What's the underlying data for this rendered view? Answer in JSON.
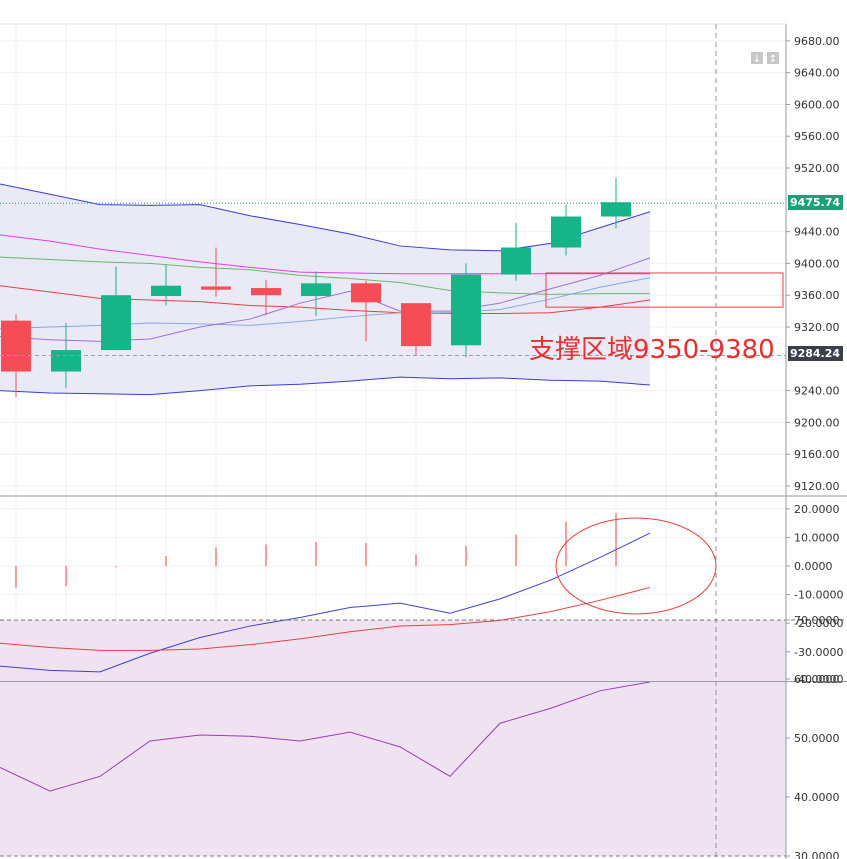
{
  "chart_data": [
    {
      "type": "candlestick",
      "panel": "price",
      "ylim": [
        9100,
        9700
      ],
      "y_ticks": [
        "9120.00",
        "9160.00",
        "9200.00",
        "9240.00",
        "9280.00",
        "9320.00",
        "9360.00",
        "9400.00",
        "9440.00",
        "9480.00",
        "9520.00",
        "9560.00",
        "9600.00",
        "9640.00",
        "9680.00"
      ],
      "candles": [
        {
          "open": 9328,
          "high": 9336,
          "low": 9232,
          "close": 9264
        },
        {
          "open": 9264,
          "high": 9325,
          "low": 9243,
          "close": 9291
        },
        {
          "open": 9291,
          "high": 9396,
          "low": 9291,
          "close": 9360
        },
        {
          "open": 9359,
          "high": 9399,
          "low": 9347,
          "close": 9372
        },
        {
          "open": 9371,
          "high": 9420,
          "low": 9358,
          "close": 9367
        },
        {
          "open": 9369,
          "high": 9379,
          "low": 9335,
          "close": 9360
        },
        {
          "open": 9359,
          "high": 9390,
          "low": 9334,
          "close": 9375
        },
        {
          "open": 9375,
          "high": 9378,
          "low": 9302,
          "close": 9351
        },
        {
          "open": 9350,
          "high": 9350,
          "low": 9285,
          "close": 9296
        },
        {
          "open": 9297,
          "high": 9400,
          "low": 9282,
          "close": 9386
        },
        {
          "open": 9386,
          "high": 9451,
          "low": 9378,
          "close": 9420
        },
        {
          "open": 9420,
          "high": 9474,
          "low": 9410,
          "close": 9459
        },
        {
          "open": 9459,
          "high": 9508,
          "low": 9444,
          "close": 9477
        }
      ],
      "series": [
        {
          "values": [
            9500,
            9487,
            9474,
            9473,
            9474,
            9460,
            9449,
            9437,
            9422,
            9417,
            9416,
            9425,
            9445,
            9465
          ],
          "color": "#3b3bd8"
        },
        {
          "values": [
            9240,
            9237,
            9236,
            9235,
            9240,
            9246,
            9248,
            9252,
            9257,
            9255,
            9256,
            9253,
            9252,
            9247
          ],
          "color": "#3b3bd8"
        },
        {
          "values": [
            9436,
            9428,
            9418,
            9410,
            9402,
            9395,
            9389,
            9388,
            9387,
            9387,
            9387,
            9387,
            9387,
            9387
          ],
          "color": "#e040e0"
        },
        {
          "values": [
            9408,
            9405,
            9402,
            9400,
            9395,
            9392,
            9385,
            9381,
            9376,
            9366,
            9363,
            9361,
            9362,
            9362
          ],
          "color": "#6ab86a"
        },
        {
          "values": [
            9372,
            9364,
            9356,
            9354,
            9352,
            9347,
            9345,
            9341,
            9338,
            9337,
            9337,
            9338,
            9345,
            9354
          ],
          "color": "#e84040"
        },
        {
          "values": [
            9318,
            9320,
            9322,
            9325,
            9324,
            9322,
            9327,
            9333,
            9338,
            9338,
            9342,
            9355,
            9370,
            9382
          ],
          "color": "#88a8e0"
        },
        {
          "values": [
            9308,
            9304,
            9302,
            9305,
            9320,
            9330,
            9350,
            9365,
            9340,
            9340,
            9350,
            9368,
            9385,
            9407
          ],
          "color": "#a070d0"
        }
      ],
      "current_price_label": "9475.74",
      "current_price": 9475.74,
      "marker_price_label": "9284.24",
      "marker_price": 9284.24,
      "support_zone": [
        9345,
        9388
      ],
      "annotation": "支撑区域9350-9380"
    },
    {
      "type": "bar+line",
      "panel": "macd",
      "ylim": [
        -40,
        20
      ],
      "y_ticks": [
        "-40.0000",
        "-30.0000",
        "-20.0000",
        "-10.0000",
        "0.0000",
        "10.0000",
        "20.0000"
      ],
      "histogram": [
        -7.5,
        -7,
        -0.5,
        3.5,
        6.5,
        7.5,
        8.5,
        8,
        4,
        7,
        11,
        15.5,
        18.5
      ],
      "series": [
        {
          "values": [
            -35,
            -36.5,
            -37,
            -30.5,
            -25,
            -21,
            -18,
            -14.5,
            -13,
            -16.5,
            -11.5,
            -5,
            3,
            11.5
          ],
          "color": "#4040d0"
        },
        {
          "values": [
            -27,
            -28.5,
            -29.5,
            -29.5,
            -29,
            -27.5,
            -25.5,
            -23,
            -21,
            -20.5,
            -19,
            -16,
            -12,
            -7.5
          ],
          "color": "#e84040"
        }
      ]
    },
    {
      "type": "line",
      "panel": "rsi",
      "ylim": [
        30,
        72
      ],
      "y_ticks": [
        "30.0000",
        "40.0000",
        "50.0000",
        "60.0000",
        "70.0000"
      ],
      "level": 70,
      "series": [
        {
          "values": [
            45,
            41,
            43.5,
            49.5,
            50.5,
            50.3,
            49.5,
            51,
            48.5,
            43.5,
            52.5,
            55,
            58,
            59.5
          ],
          "color": "#9b3bb8"
        }
      ]
    }
  ]
}
